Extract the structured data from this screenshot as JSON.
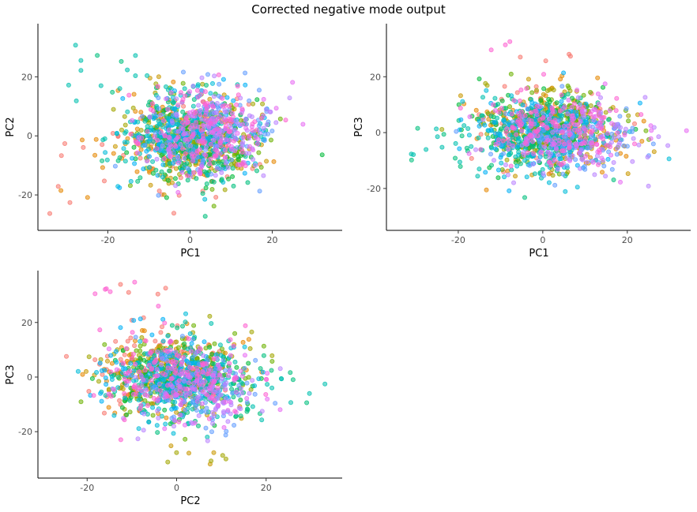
{
  "figure": {
    "title": "Corrected negative mode output"
  },
  "palette": [
    "#F8766D",
    "#E58700",
    "#C99800",
    "#A3A500",
    "#6BB100",
    "#00BA38",
    "#00BF7D",
    "#00C0AF",
    "#00BCD8",
    "#00B0F6",
    "#619CFF",
    "#B983FF",
    "#E76BF3",
    "#FD61D1"
  ],
  "chart_data": [
    {
      "type": "scatter",
      "xlabel": "PC1",
      "ylabel": "PC2",
      "xlim": [
        -37,
        37
      ],
      "ylim": [
        -32,
        38
      ],
      "xticks": [
        -20,
        0,
        20
      ],
      "yticks": [
        -20,
        0,
        20
      ],
      "tick_labels_x": [
        "-20",
        "0",
        "20"
      ],
      "tick_labels_y": [
        "-20",
        "0",
        "20"
      ],
      "grid": false,
      "point_count": 1400,
      "groups": 14,
      "cluster_center": [
        1,
        0
      ],
      "spread": [
        8,
        7.5
      ],
      "features": [
        "teal group spreads to the upper left (PC1 -30 to -10, PC2 10 to 35)",
        "orange/red points scattered at far left (PC1 -35 to -20, PC2 -28 to 5)",
        "orange/pink points extend to upper right (PC1 15 to 25, PC2 5 to 20)"
      ]
    },
    {
      "type": "scatter",
      "xlabel": "PC1",
      "ylabel": "PC3",
      "xlim": [
        -37,
        35
      ],
      "ylim": [
        -35,
        39
      ],
      "xticks": [
        -20,
        0,
        20
      ],
      "yticks": [
        -20,
        0,
        20
      ],
      "tick_labels_x": [
        "-20",
        "0",
        "20"
      ],
      "tick_labels_y": [
        "-20",
        "0",
        "20"
      ],
      "grid": false,
      "point_count": 1400,
      "groups": 14,
      "cluster_center": [
        1,
        0
      ],
      "spread": [
        8,
        7
      ],
      "features": [
        "red/pink points at top (PC3 25 to 36)",
        "purple group shifted right (PC1 5 to 20)",
        "teal/green extends left (PC1 -30 to -15)"
      ]
    },
    {
      "type": "scatter",
      "xlabel": "PC2",
      "ylabel": "PC3",
      "xlim": [
        -31,
        37
      ],
      "ylim": [
        -37,
        39
      ],
      "xticks": [
        -20,
        0,
        20
      ],
      "yticks": [
        -20,
        0,
        20
      ],
      "tick_labels_x": [
        "-20",
        "0",
        "20"
      ],
      "tick_labels_y": [
        "-20",
        "0",
        "20"
      ],
      "grid": false,
      "point_count": 1400,
      "groups": 14,
      "cluster_center": [
        0,
        0
      ],
      "spread": [
        7.5,
        7
      ],
      "features": [
        "red/pink points at top left (PC2 -20 to 0, PC3 25 to 38)",
        "teal points extend right (PC2 15 to 35)",
        "olive points at bottom (PC3 -25 to -32)"
      ]
    }
  ]
}
